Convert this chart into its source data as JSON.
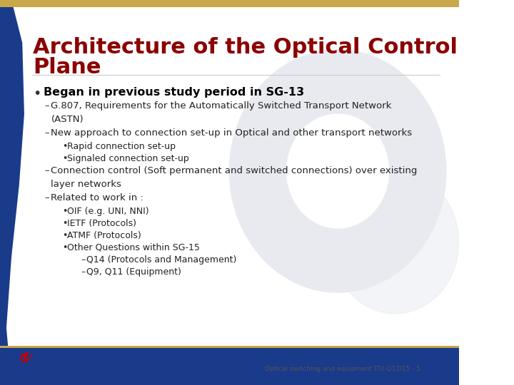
{
  "title_line1": "Architecture of the Optical Control",
  "title_line2": "Plane",
  "title_color": "#8B0000",
  "bg_color": "#FFFFFF",
  "footer_text": "Optical switching and equipment ITU Q12/15 - 5",
  "footer_color": "#555555",
  "bullet_bold": "Began in previous study period in SG-13",
  "content": [
    {
      "level": 1,
      "text": "G.807, Requirements for the Automatically Switched Transport Network\n(ASTN)"
    },
    {
      "level": 1,
      "text": "New approach to connection set-up in Optical and other transport networks"
    },
    {
      "level": 2,
      "text": "Rapid connection set-up"
    },
    {
      "level": 2,
      "text": "Signaled connection set-up"
    },
    {
      "level": 1,
      "text": "Connection control (Soft permanent and switched connections) over existing\nlayer networks"
    },
    {
      "level": 1,
      "text": "Related to work in :"
    },
    {
      "level": 2,
      "text": "OIF (e.g. UNI, NNI)"
    },
    {
      "level": 2,
      "text": "IETF (Protocols)"
    },
    {
      "level": 2,
      "text": "ATMF (Protocols)"
    },
    {
      "level": 2,
      "text": "Other Questions within SG-15"
    },
    {
      "level": 3,
      "text": "Q14 (Protocols and Management)"
    },
    {
      "level": 3,
      "text": "Q9, Q11 (Equipment)"
    }
  ],
  "left_bar_color": "#1a3a8a",
  "accent_gold": "#c8a84b",
  "nortel_blue": "#1a3a8a",
  "nortel_red": "#cc0000"
}
